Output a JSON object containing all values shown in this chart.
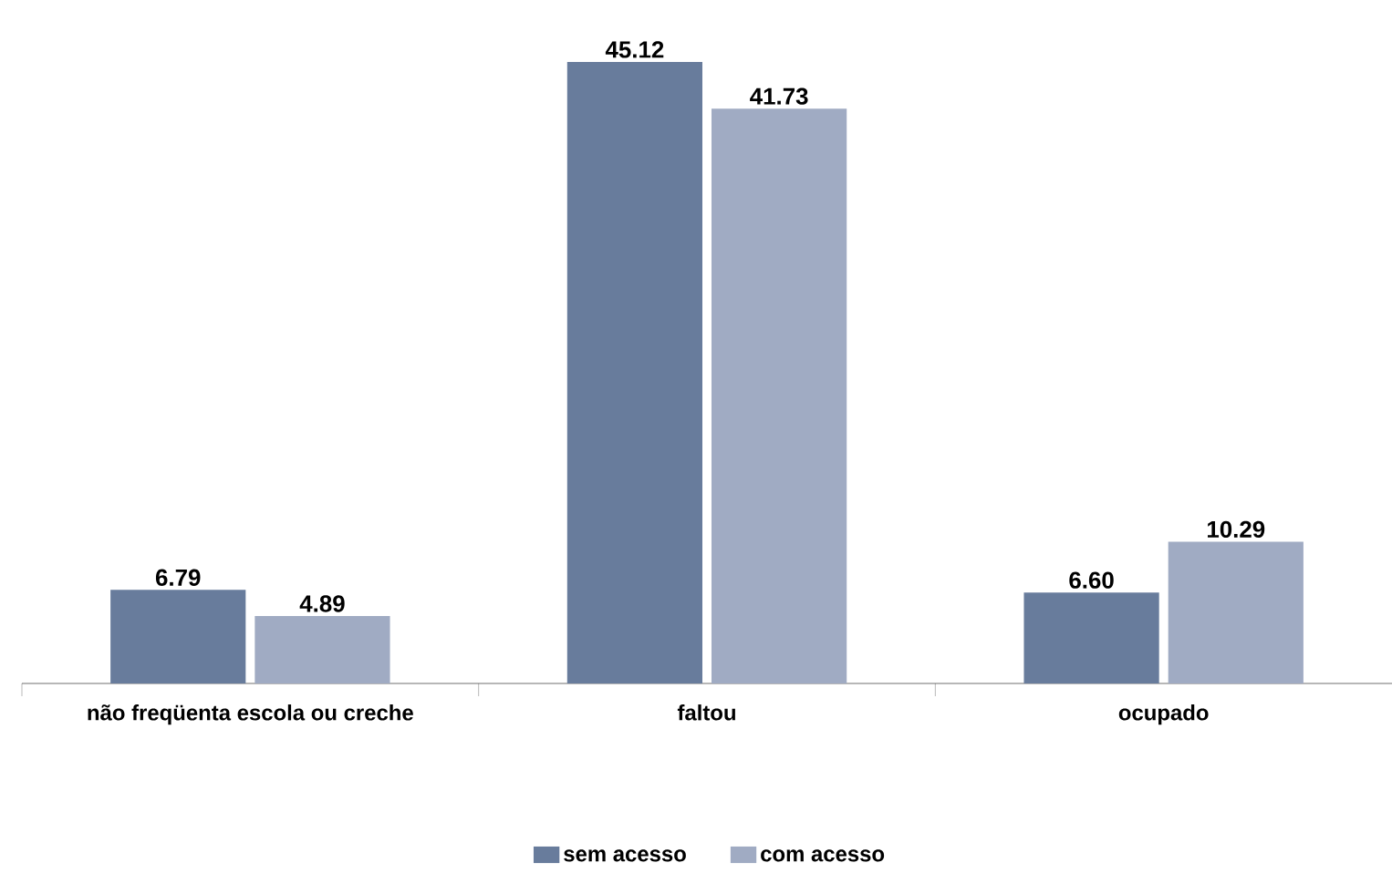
{
  "chart_data": {
    "type": "bar",
    "categories": [
      "não freqüenta escola ou creche",
      "faltou",
      "ocupado"
    ],
    "series": [
      {
        "name": "sem acesso",
        "color": "#687c9c",
        "values": [
          6.79,
          45.12,
          6.6
        ],
        "value_labels": [
          "6.79",
          "45.12",
          "6.60"
        ]
      },
      {
        "name": "com acesso",
        "color": "#a0abc3",
        "values": [
          4.89,
          41.73,
          10.29
        ],
        "value_labels": [
          "4.89",
          "41.73",
          "10.29"
        ]
      }
    ],
    "legend": "bottom"
  }
}
